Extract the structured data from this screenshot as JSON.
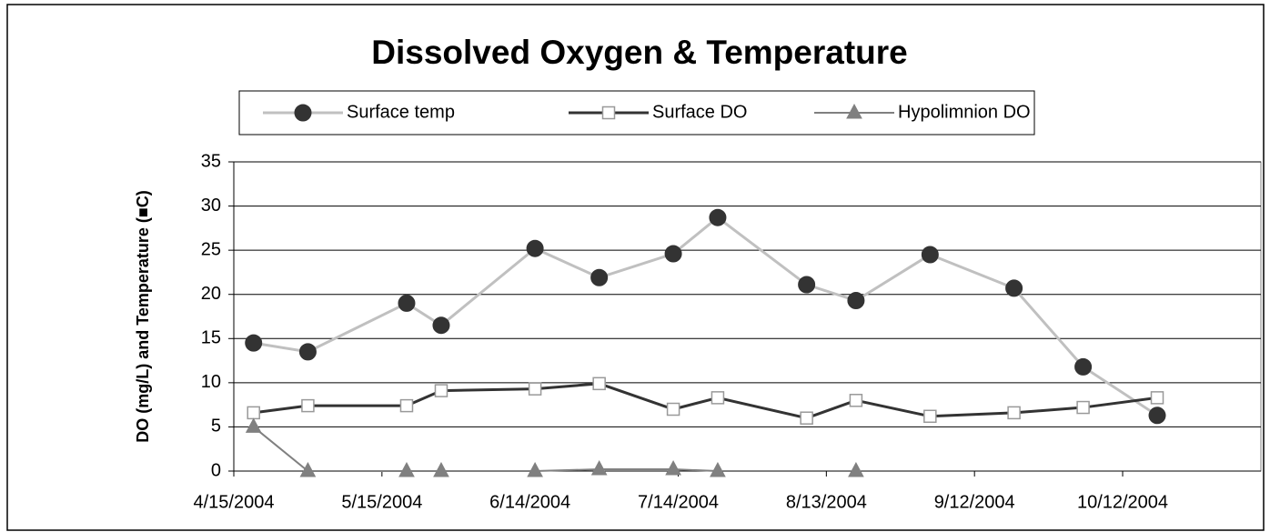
{
  "chart_data": {
    "type": "line",
    "title": "Dissolved Oxygen & Temperature",
    "y_label": "DO (mg/L) and Temperature (■C)",
    "x": [
      "4/19/2004",
      "4/30/2004",
      "5/20/2004",
      "5/27/2004",
      "6/15/2004",
      "6/28/2004",
      "7/13/2004",
      "7/22/2004",
      "8/9/2004",
      "8/19/2004",
      "9/3/2004",
      "9/20/2004",
      "10/4/2004",
      "10/19/2004"
    ],
    "series": [
      {
        "name": "Surface temp",
        "color": "#c0c0c0",
        "marker": "circle",
        "marker_color": "#333333",
        "values": [
          14.5,
          13.5,
          19.0,
          16.5,
          25.2,
          21.9,
          24.6,
          28.7,
          21.1,
          19.3,
          24.5,
          20.7,
          11.8,
          6.3
        ]
      },
      {
        "name": "Surface DO",
        "color": "#333333",
        "marker": "square",
        "marker_color": "#999999",
        "values": [
          6.6,
          7.4,
          7.4,
          9.1,
          9.3,
          9.9,
          7.0,
          8.3,
          6.0,
          8.0,
          6.2,
          6.6,
          7.2,
          8.3
        ]
      },
      {
        "name": "Hypolimnion DO",
        "color": "#808080",
        "marker": "triangle",
        "marker_color": "#808080",
        "values": [
          5.0,
          0,
          0,
          0,
          0,
          0.2,
          0.2,
          0,
          null,
          0,
          null,
          null,
          null,
          null
        ]
      }
    ],
    "xlim": [
      "4/15/2004",
      "11/9/2004"
    ],
    "xticks": [
      "4/15/2004",
      "5/15/2004",
      "6/14/2004",
      "7/14/2004",
      "8/13/2004",
      "9/12/2004",
      "10/12/2004"
    ],
    "ylim": [
      0,
      35
    ],
    "yticks": [
      0,
      5,
      10,
      15,
      20,
      25,
      30,
      35
    ],
    "grid": true,
    "legend": "top"
  }
}
